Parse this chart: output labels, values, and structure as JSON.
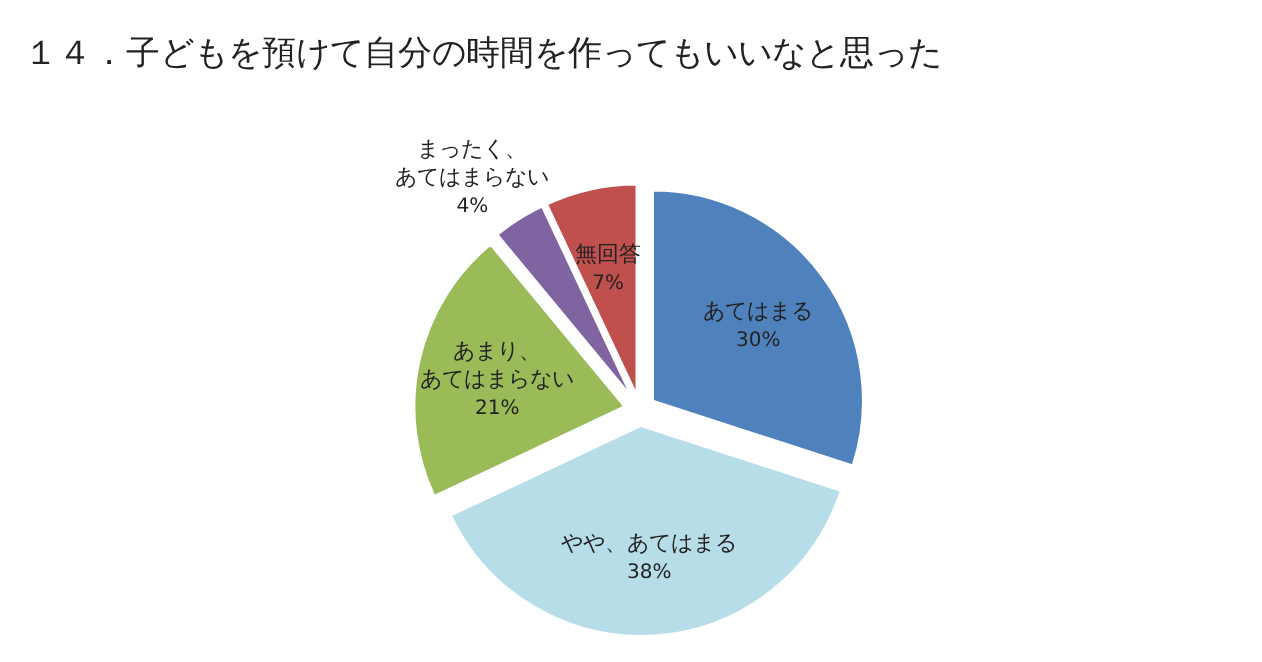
{
  "chart_data": {
    "type": "pie",
    "title": "１４．子どもを預けて自分の時間を作ってもいいなと思った",
    "categories": [
      "あてはまる",
      "やや、あてはまる",
      "あまり、あてはまらない",
      "まったく、あてはまらない",
      "無回答"
    ],
    "values": [
      30,
      38,
      21,
      4,
      7
    ],
    "value_labels": [
      "30%",
      "38%",
      "21%",
      "4%",
      "7%"
    ],
    "colors": [
      "#4f81bd",
      "#b7dde8",
      "#9bbb59",
      "#8064a2",
      "#c0504d"
    ]
  }
}
